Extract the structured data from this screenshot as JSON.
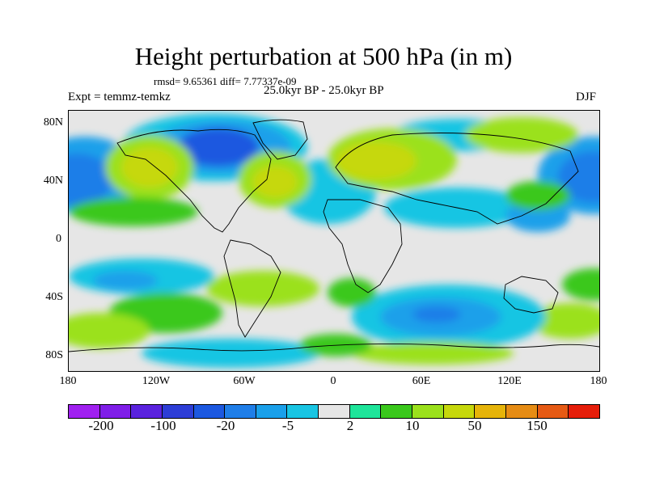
{
  "title": "Height perturbation at 500 hPa (in m)",
  "stats": "rmsd= 9.65361 diff= 7.77337e-09",
  "period": "25.0kyr BP - 25.0kyr BP",
  "expt": "Expt = temmz-temkz",
  "season": "DJF",
  "y_axis": {
    "labels": [
      "80N",
      "40N",
      "0",
      "40S",
      "80S"
    ],
    "values": [
      80,
      40,
      0,
      -40,
      -80
    ]
  },
  "x_axis": {
    "labels": [
      "180",
      "120W",
      "60W",
      "0",
      "60E",
      "120E",
      "180"
    ],
    "values": [
      -180,
      -120,
      -60,
      0,
      60,
      120,
      180
    ]
  },
  "colorbar": {
    "colors": [
      "#a020f0",
      "#7f1ee8",
      "#5a22de",
      "#2d3dd6",
      "#1c58e0",
      "#1f7ee8",
      "#1aa0ea",
      "#19c5e3",
      "#e6e6e6",
      "#1ee59a",
      "#3ac81c",
      "#9be11c",
      "#c6d80c",
      "#e6b40a",
      "#e68c14",
      "#e65a14",
      "#e61e0a"
    ],
    "labels": [
      "-200",
      "-100",
      "-20",
      "-5",
      "2",
      "10",
      "50",
      "150"
    ]
  },
  "legend_colors": {
    "land_outline": "#000000",
    "background": "#e6e6e6"
  }
}
